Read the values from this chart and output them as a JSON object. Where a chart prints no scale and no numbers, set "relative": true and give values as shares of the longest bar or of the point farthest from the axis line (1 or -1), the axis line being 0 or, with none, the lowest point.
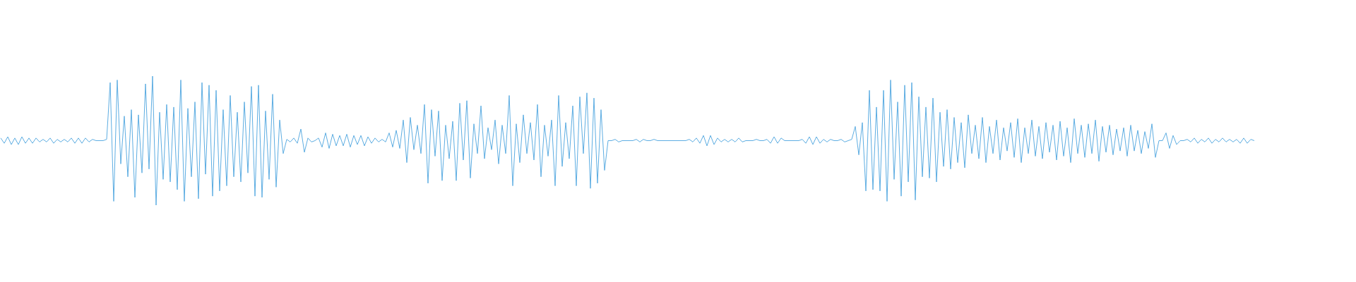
{
  "chart_data": {
    "type": "line",
    "relative": true,
    "color": "#5dade2",
    "categories": [
      null,
      null,
      null,
      null,
      null,
      null,
      null,
      null,
      null,
      null,
      null,
      null,
      null,
      null,
      null,
      null,
      null,
      null,
      null,
      null,
      null,
      null,
      null,
      null,
      null,
      null,
      null,
      null,
      null,
      null,
      null,
      null,
      null,
      null,
      null,
      null,
      null,
      null,
      null,
      null,
      null,
      null,
      null,
      null,
      null,
      null,
      null,
      null,
      null,
      null,
      null,
      null,
      null,
      null,
      null,
      null,
      null,
      null,
      null,
      null,
      null,
      null,
      null,
      null,
      null,
      null,
      null,
      null,
      null,
      null,
      null,
      null,
      null,
      null,
      null,
      null,
      null,
      null,
      null,
      null,
      null,
      null,
      null,
      null,
      null,
      null,
      null,
      null,
      null,
      null,
      null,
      null,
      null,
      null,
      null,
      null,
      null,
      null,
      null,
      null,
      null,
      null,
      null,
      null,
      null,
      null,
      null,
      null,
      null,
      null,
      null,
      null,
      null,
      null,
      null,
      null,
      null,
      null,
      null,
      null,
      null,
      null,
      null,
      null,
      null,
      null,
      null,
      null,
      null,
      null,
      null,
      null,
      null,
      null,
      null,
      null,
      null,
      null,
      null,
      null,
      null,
      null,
      null,
      null,
      null,
      null,
      null,
      null,
      null,
      null,
      null,
      null,
      null,
      null,
      null,
      null,
      null,
      null,
      null,
      null,
      null,
      null,
      null,
      null,
      null,
      null,
      null,
      null,
      null,
      null,
      null,
      null,
      null,
      null,
      null,
      null,
      null,
      null,
      null,
      null,
      null,
      null,
      null,
      null,
      null,
      null,
      null,
      null,
      null,
      null,
      null,
      null,
      null,
      null,
      null,
      null,
      null,
      null,
      null,
      null,
      null,
      null,
      null,
      null,
      null,
      null,
      null,
      null,
      null,
      null,
      null,
      null,
      null,
      null,
      null,
      null,
      null,
      null,
      null,
      null,
      null,
      null,
      null,
      null,
      null,
      null,
      null,
      null,
      null,
      null,
      null,
      null,
      null,
      null,
      null,
      null,
      null,
      null,
      null,
      null,
      null,
      null,
      null,
      null,
      null,
      null,
      null,
      null,
      null,
      null,
      null,
      null,
      null,
      null,
      null,
      null,
      null,
      null,
      null,
      null,
      null,
      null,
      null,
      null,
      null,
      null,
      null,
      null,
      null,
      null,
      null,
      null,
      null,
      null,
      null,
      null,
      null,
      null,
      null,
      null,
      null,
      null,
      null,
      null,
      null,
      null,
      null,
      null,
      null,
      null,
      null,
      null,
      null,
      null,
      null,
      null,
      null,
      null,
      null,
      null,
      null,
      null,
      null,
      null,
      null,
      null,
      null,
      null,
      null,
      null,
      null,
      null,
      null,
      null,
      null,
      null,
      null,
      null,
      null,
      null,
      null,
      null,
      null,
      null,
      null,
      null,
      null,
      null,
      null,
      null,
      null,
      null,
      null,
      null,
      null,
      null,
      null,
      null,
      null,
      null,
      null,
      null,
      null,
      null,
      null,
      null,
      null,
      null,
      null,
      null,
      null,
      null,
      null,
      null,
      null,
      null
    ],
    "values": [
      0.52,
      0.48,
      0.53,
      0.47,
      0.52,
      0.47,
      0.53,
      0.48,
      0.52,
      0.48,
      0.52,
      0.49,
      0.51,
      0.49,
      0.52,
      0.48,
      0.51,
      0.49,
      0.51,
      0.49,
      0.52,
      0.48,
      0.52,
      0.48,
      0.52,
      0.49,
      0.51,
      0.5,
      0.5,
      0.5,
      0.51,
      0.95,
      0.03,
      0.97,
      0.32,
      0.69,
      0.22,
      0.74,
      0.06,
      0.7,
      0.25,
      0.94,
      0.28,
      1,
      0,
      0.72,
      0.2,
      0.78,
      0.18,
      0.76,
      0.12,
      0.97,
      0.03,
      0.75,
      0.22,
      0.8,
      0.05,
      0.95,
      0.24,
      0.93,
      0.07,
      0.89,
      0.11,
      0.74,
      0.15,
      0.85,
      0.22,
      0.72,
      0.18,
      0.8,
      0.25,
      0.92,
      0.07,
      0.93,
      0.06,
      0.73,
      0.2,
      0.86,
      0.14,
      0.66,
      0.4,
      0.51,
      0.49,
      0.52,
      0.48,
      0.59,
      0.41,
      0.52,
      0.49,
      0.5,
      0.52,
      0.45,
      0.56,
      0.44,
      0.55,
      0.46,
      0.54,
      0.46,
      0.55,
      0.45,
      0.54,
      0.47,
      0.54,
      0.46,
      0.53,
      0.48,
      0.52,
      0.49,
      0.51,
      0.49,
      0.56,
      0.45,
      0.58,
      0.44,
      0.66,
      0.33,
      0.68,
      0.43,
      0.62,
      0.4,
      0.78,
      0.17,
      0.74,
      0.38,
      0.73,
      0.19,
      0.62,
      0.36,
      0.65,
      0.19,
      0.79,
      0.35,
      0.81,
      0.21,
      0.63,
      0.4,
      0.77,
      0.36,
      0.6,
      0.43,
      0.66,
      0.32,
      0.62,
      0.4,
      0.85,
      0.15,
      0.63,
      0.33,
      0.7,
      0.4,
      0.64,
      0.35,
      0.78,
      0.22,
      0.62,
      0.38,
      0.66,
      0.15,
      0.85,
      0.3,
      0.64,
      0.36,
      0.77,
      0.15,
      0.84,
      0.4,
      0.87,
      0.13,
      0.83,
      0.17,
      0.74,
      0.27,
      0.5,
      0.5,
      0.51,
      0.49,
      0.5,
      0.5,
      0.5,
      0.5,
      0.51,
      0.49,
      0.51,
      0.5,
      0.5,
      0.51,
      0.5,
      0.5,
      0.5,
      0.5,
      0.5,
      0.5,
      0.5,
      0.5,
      0.5,
      0.51,
      0.49,
      0.52,
      0.48,
      0.54,
      0.46,
      0.54,
      0.47,
      0.52,
      0.49,
      0.51,
      0.49,
      0.51,
      0.49,
      0.52,
      0.49,
      0.5,
      0.5,
      0.5,
      0.51,
      0.5,
      0.5,
      0.51,
      0.48,
      0.53,
      0.48,
      0.52,
      0.5,
      0.5,
      0.5,
      0.5,
      0.5,
      0.51,
      0.48,
      0.53,
      0.47,
      0.53,
      0.48,
      0.51,
      0.49,
      0.51,
      0.5,
      0.5,
      0.51,
      0.49,
      0.5,
      0.51,
      0.61,
      0.39,
      0.64,
      0.11,
      0.89,
      0.12,
      0.76,
      0.11,
      0.89,
      0.03,
      0.97,
      0.2,
      0.8,
      0.07,
      0.93,
      0.18,
      0.95,
      0.04,
      0.84,
      0.22,
      0.76,
      0.21,
      0.83,
      0.18,
      0.72,
      0.3,
      0.74,
      0.28,
      0.68,
      0.33,
      0.64,
      0.29,
      0.7,
      0.4,
      0.62,
      0.36,
      0.68,
      0.33,
      0.61,
      0.4,
      0.66,
      0.35,
      0.6,
      0.42,
      0.64,
      0.37,
      0.67,
      0.33,
      0.6,
      0.4,
      0.66,
      0.38,
      0.61,
      0.36,
      0.64,
      0.41,
      0.62,
      0.35,
      0.65,
      0.38,
      0.6,
      0.33,
      0.67,
      0.4,
      0.62,
      0.37,
      0.63,
      0.4,
      0.66,
      0.34,
      0.61,
      0.41,
      0.62,
      0.39,
      0.59,
      0.42,
      0.6,
      0.38,
      0.62,
      0.42,
      0.58,
      0.4,
      0.57,
      0.44,
      0.63,
      0.37,
      0.5,
      0.5,
      0.56,
      0.44,
      0.54,
      0.47,
      0.5,
      0.5,
      0.51,
      0.49,
      0.52,
      0.48,
      0.51,
      0.49,
      0.52,
      0.48,
      0.51,
      0.49,
      0.52,
      0.49,
      0.51,
      0.49,
      0.51,
      0.48,
      0.52,
      0.48,
      0.51,
      0.5
    ]
  }
}
